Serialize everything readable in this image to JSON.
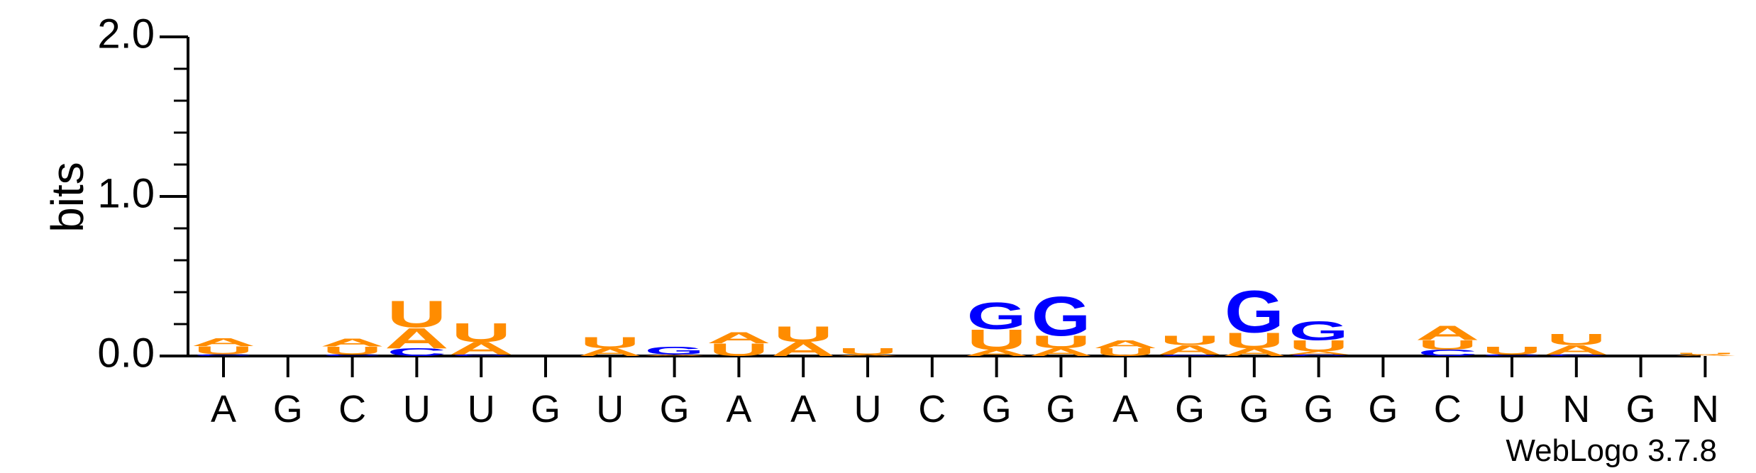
{
  "chart_data": {
    "type": "sequence-logo",
    "ylabel": "bits",
    "ylim": [
      0,
      2.0
    ],
    "yticks": [
      "0.0",
      "1.0",
      "2.0"
    ],
    "xtick_labels": [
      "A",
      "G",
      "C",
      "U",
      "U",
      "G",
      "U",
      "G",
      "A",
      "A",
      "U",
      "C",
      "G",
      "G",
      "A",
      "G",
      "G",
      "G",
      "G",
      "C",
      "U",
      "N",
      "G",
      "N"
    ],
    "credit": "WebLogo 3.7.8",
    "colors": {
      "A": "#ff8c00",
      "U": "#ff8c00",
      "G": "#0000ff",
      "C": "#0000ff"
    },
    "columns": [
      {
        "stack": [
          {
            "b": "C",
            "h": 0.012
          },
          {
            "b": "U",
            "h": 0.05
          },
          {
            "b": "A",
            "h": 0.05
          }
        ]
      },
      {
        "stack": []
      },
      {
        "stack": [
          {
            "b": "C",
            "h": 0.01
          },
          {
            "b": "U",
            "h": 0.05
          },
          {
            "b": "A",
            "h": 0.05
          }
        ]
      },
      {
        "stack": [
          {
            "b": "C",
            "h": 0.05
          },
          {
            "b": "A",
            "h": 0.13
          },
          {
            "b": "U",
            "h": 0.17
          }
        ]
      },
      {
        "stack": [
          {
            "b": "C",
            "h": 0.01
          },
          {
            "b": "A",
            "h": 0.08
          },
          {
            "b": "U",
            "h": 0.12
          }
        ]
      },
      {
        "stack": []
      },
      {
        "stack": [
          {
            "b": "A",
            "h": 0.05
          },
          {
            "b": "U",
            "h": 0.07
          }
        ]
      },
      {
        "stack": [
          {
            "b": "A",
            "h": 0.01
          },
          {
            "b": "G",
            "h": 0.05
          }
        ]
      },
      {
        "stack": [
          {
            "b": "U",
            "h": 0.08
          },
          {
            "b": "A",
            "h": 0.07
          }
        ]
      },
      {
        "stack": [
          {
            "b": "A",
            "h": 0.09
          },
          {
            "b": "U",
            "h": 0.1
          }
        ]
      },
      {
        "stack": [
          {
            "b": "A",
            "h": 0.01
          },
          {
            "b": "U",
            "h": 0.04
          }
        ]
      },
      {
        "stack": []
      },
      {
        "stack": [
          {
            "b": "A",
            "h": 0.04
          },
          {
            "b": "U",
            "h": 0.13
          },
          {
            "b": "G",
            "h": 0.17
          }
        ]
      },
      {
        "stack": [
          {
            "b": "A",
            "h": 0.05
          },
          {
            "b": "U",
            "h": 0.08
          },
          {
            "b": "G",
            "h": 0.25
          }
        ]
      },
      {
        "stack": [
          {
            "b": "U",
            "h": 0.05
          },
          {
            "b": "A",
            "h": 0.05
          }
        ]
      },
      {
        "stack": [
          {
            "b": "G",
            "h": 0.01
          },
          {
            "b": "A",
            "h": 0.06
          },
          {
            "b": "U",
            "h": 0.06
          }
        ]
      },
      {
        "stack": [
          {
            "b": "A",
            "h": 0.05
          },
          {
            "b": "U",
            "h": 0.1
          },
          {
            "b": "G",
            "h": 0.27
          }
        ]
      },
      {
        "stack": [
          {
            "b": "C",
            "h": 0.01
          },
          {
            "b": "A",
            "h": 0.02
          },
          {
            "b": "U",
            "h": 0.07
          },
          {
            "b": "G",
            "h": 0.12
          }
        ]
      },
      {
        "stack": []
      },
      {
        "stack": [
          {
            "b": "C",
            "h": 0.04
          },
          {
            "b": "U",
            "h": 0.06
          },
          {
            "b": "A",
            "h": 0.09
          }
        ]
      },
      {
        "stack": [
          {
            "b": "C",
            "h": 0.01
          },
          {
            "b": "U",
            "h": 0.05
          }
        ]
      },
      {
        "stack": [
          {
            "b": "C",
            "h": 0.01
          },
          {
            "b": "A",
            "h": 0.06
          },
          {
            "b": "U",
            "h": 0.07
          }
        ]
      },
      {
        "stack": []
      },
      {
        "stack": [
          {
            "b": "A",
            "h": 0.01
          },
          {
            "b": "U",
            "h": 0.01
          }
        ]
      }
    ]
  }
}
